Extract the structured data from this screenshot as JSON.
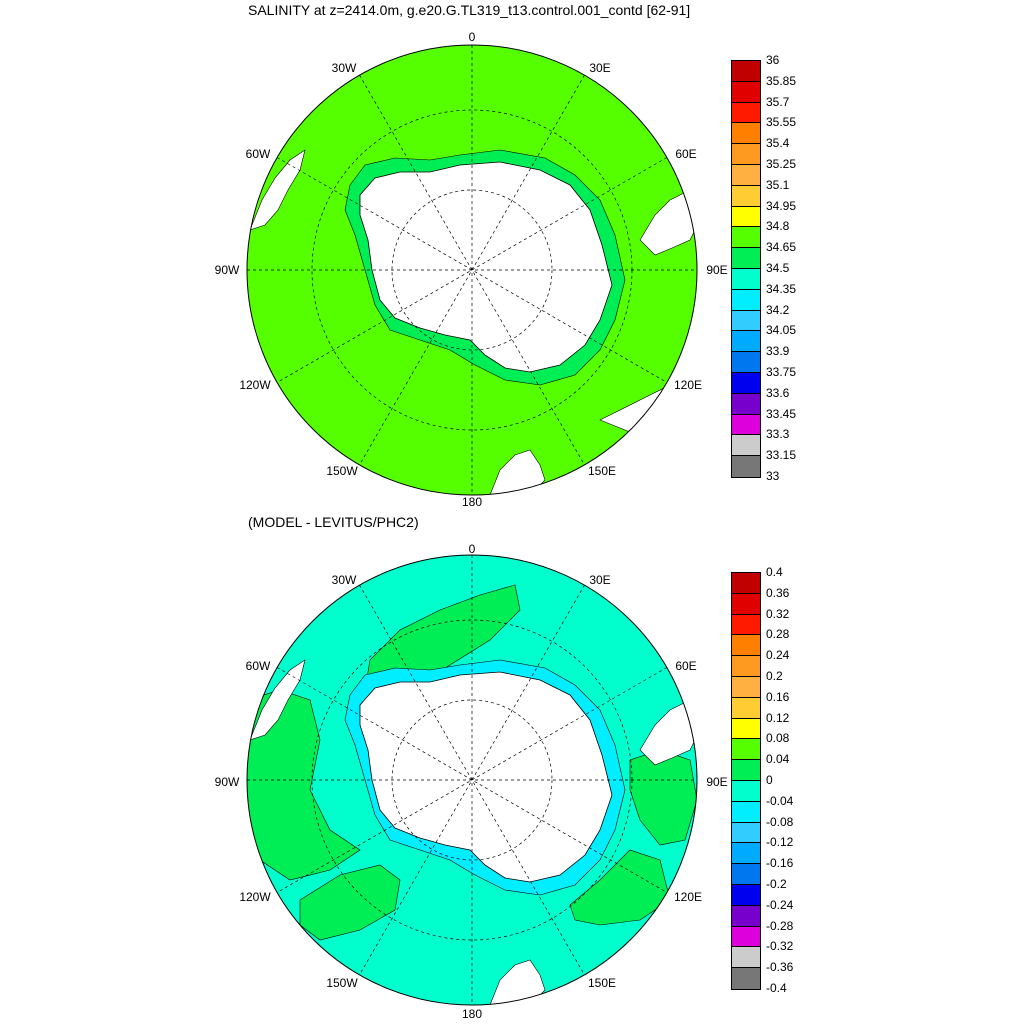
{
  "panels": [
    {
      "title": "SALINITY at z=2414.0m, g.e20.G.TL319_t13.control.001_contd [62-91]",
      "colorbar": {
        "labels": [
          "36",
          "35.85",
          "35.7",
          "35.55",
          "35.4",
          "35.25",
          "35.1",
          "34.95",
          "34.8",
          "34.65",
          "34.5",
          "34.35",
          "34.2",
          "34.05",
          "33.9",
          "33.75",
          "33.6",
          "33.45",
          "33.3",
          "33.15",
          "33"
        ],
        "colors": [
          "#c00000",
          "#e00000",
          "#ff1a00",
          "#ff8000",
          "#ff9a20",
          "#ffb040",
          "#ffcc33",
          "#ffff00",
          "#55ff00",
          "#00ee55",
          "#00ffcc",
          "#00eeff",
          "#33ccff",
          "#00aaff",
          "#0077ee",
          "#0000ee",
          "#7700cc",
          "#dd00dd",
          "#cccccc",
          "#777777"
        ]
      }
    },
    {
      "title": "(MODEL - LEVITUS/PHC2)",
      "colorbar": {
        "labels": [
          "0.4",
          "0.36",
          "0.32",
          "0.28",
          "0.24",
          "0.2",
          "0.16",
          "0.12",
          "0.08",
          "0.04",
          "0",
          "-0.04",
          "-0.08",
          "-0.12",
          "-0.16",
          "-0.2",
          "-0.24",
          "-0.28",
          "-0.32",
          "-0.36",
          "-0.4"
        ],
        "colors": [
          "#c00000",
          "#e00000",
          "#ff1a00",
          "#ff8000",
          "#ff9a20",
          "#ffb040",
          "#ffcc33",
          "#ffff00",
          "#55ff00",
          "#00ee55",
          "#00ffcc",
          "#00eeff",
          "#33ccff",
          "#00aaff",
          "#0077ee",
          "#0000ee",
          "#7700cc",
          "#dd00dd",
          "#cccccc",
          "#777777"
        ]
      }
    }
  ],
  "longitude_labels": {
    "n0": "0",
    "e30": "30E",
    "e60": "60E",
    "e90": "90E",
    "e120": "120E",
    "e150": "150E",
    "s180": "180",
    "w150": "150W",
    "w120": "120W",
    "w90": "90W",
    "w60": "60W",
    "w30": "30W"
  },
  "field_colors": {
    "top_ocean": "#55ff00",
    "top_shelf": "#00ee55",
    "bottom_ocean": "#00ffcc",
    "bottom_positive": "#00ee55",
    "bottom_shelf": "#00eeff",
    "land": "#ffffff"
  }
}
